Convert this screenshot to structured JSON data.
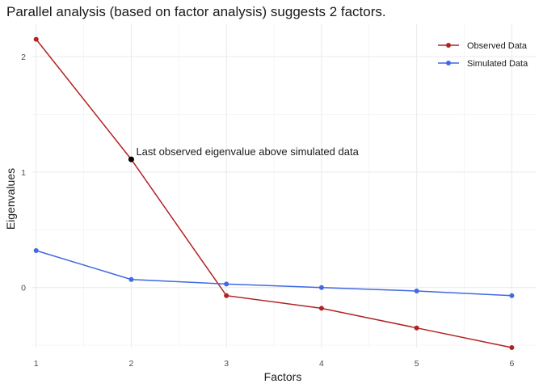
{
  "chart_data": {
    "type": "line",
    "title": "Parallel analysis (based on factor analysis) suggests 2 factors.",
    "xlabel": "Factors",
    "ylabel": "Eigenvalues",
    "x": [
      1,
      2,
      3,
      4,
      5,
      6
    ],
    "xlim": [
      0.96,
      6.26
    ],
    "ylim": [
      -0.52,
      2.28
    ],
    "yticks": [
      0,
      1,
      2
    ],
    "xticks": [
      1,
      2,
      3,
      4,
      5,
      6
    ],
    "grid": true,
    "legend_position": "top-right",
    "series": [
      {
        "name": "Observed Data",
        "color": "#b22222",
        "values": [
          2.15,
          1.11,
          -0.07,
          -0.18,
          -0.35,
          -0.52
        ]
      },
      {
        "name": "Simulated Data",
        "color": "#4169e1",
        "values": [
          0.32,
          0.07,
          0.03,
          0.0,
          -0.03,
          -0.07
        ]
      }
    ],
    "highlight": {
      "x": 2,
      "y": 1.11,
      "color": "#000000"
    },
    "annotation": "Last observed eigenvalue above simulated data"
  }
}
